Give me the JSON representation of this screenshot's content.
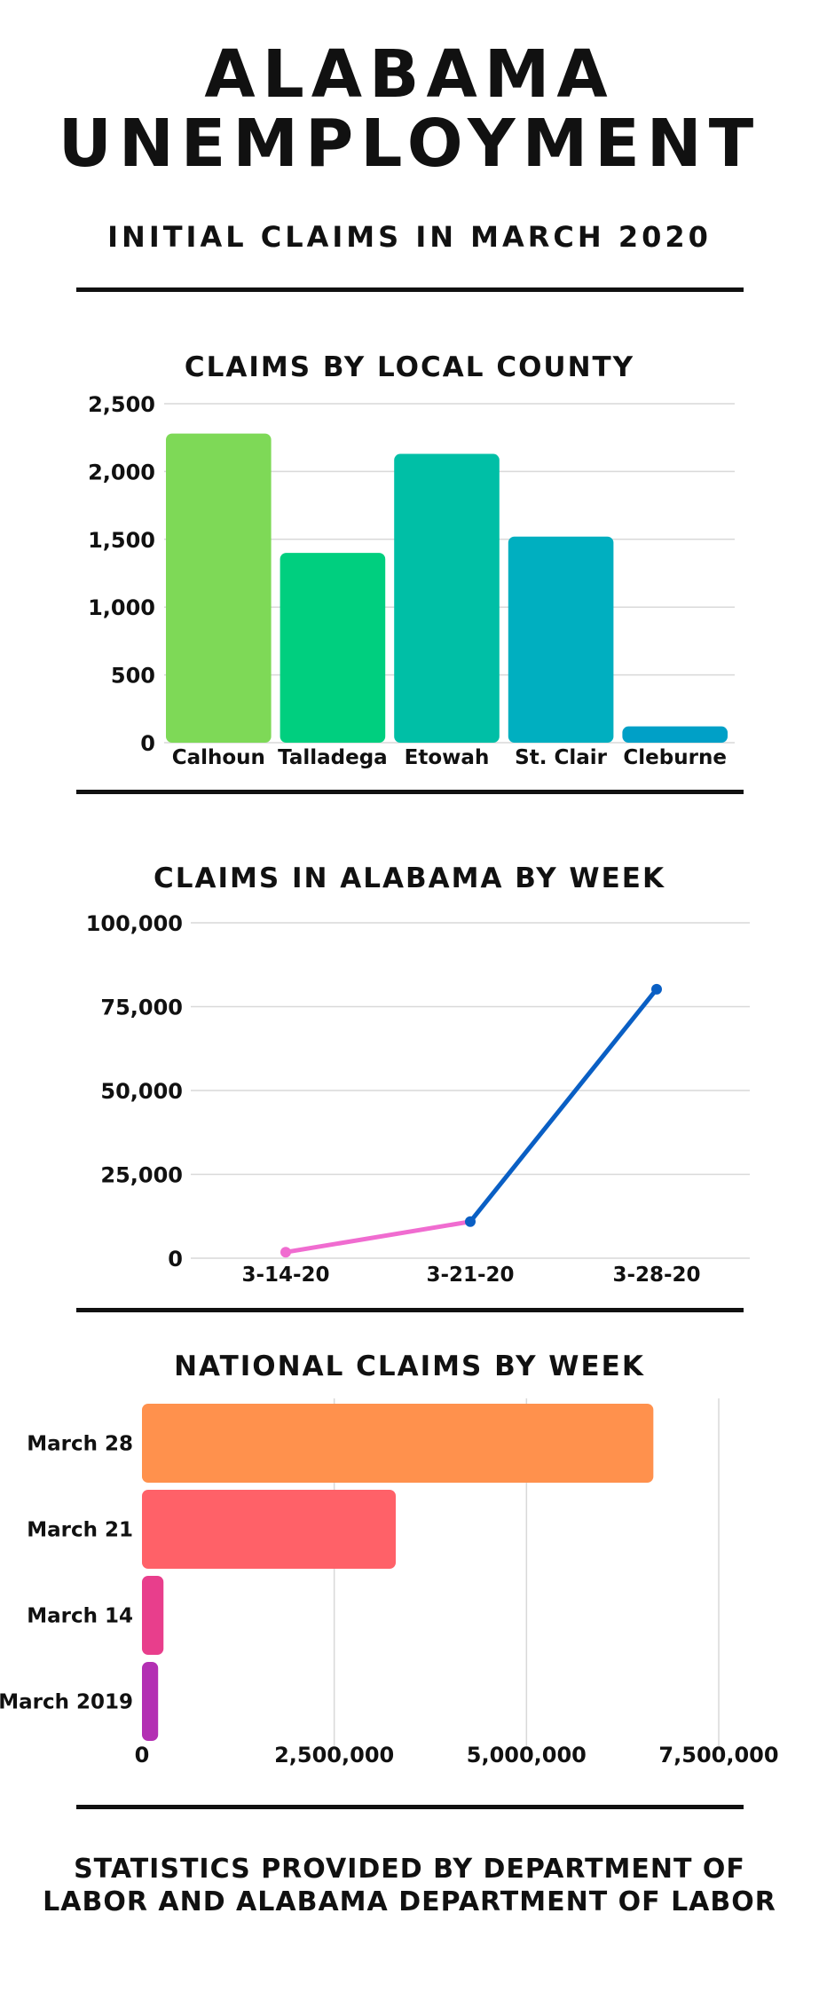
{
  "header": {
    "title_line1": "ALABAMA",
    "title_line2": "UNEMPLOYMENT",
    "subtitle": "INITIAL CLAIMS IN MARCH 2020"
  },
  "footer": {
    "line1": "STATISTICS PROVIDED BY DEPARTMENT OF",
    "line2": "LABOR AND ALABAMA DEPARTMENT OF LABOR"
  },
  "chart_data": [
    {
      "type": "bar",
      "title": "CLAIMS BY LOCAL COUNTY",
      "categories": [
        "Calhoun",
        "Talladega",
        "Etowah",
        "St. Clair",
        "Cleburne"
      ],
      "values": [
        2280,
        1400,
        2130,
        1520,
        120
      ],
      "colors": [
        "#7ed957",
        "#00cf7f",
        "#00bfa6",
        "#00afc0",
        "#00a0c7"
      ],
      "ylim": [
        0,
        2500
      ],
      "yticks": [
        0,
        500,
        1000,
        1500,
        2000,
        2500
      ],
      "ytick_labels": [
        "0",
        "500",
        "1,000",
        "1,500",
        "2,000",
        "2,500"
      ],
      "grid": true
    },
    {
      "type": "line",
      "title": "CLAIMS IN ALABAMA BY WEEK",
      "x": [
        "3-14-20",
        "3-21-20",
        "3-28-20"
      ],
      "values": [
        1800,
        10900,
        80200
      ],
      "segment_colors": [
        "#f06cd0",
        "#0a5fc4"
      ],
      "point_colors": [
        "#f06cd0",
        "#0a5fc4",
        "#0a5fc4"
      ],
      "ylim": [
        0,
        100000
      ],
      "yticks": [
        0,
        25000,
        50000,
        75000,
        100000
      ],
      "ytick_labels": [
        "0",
        "25,000",
        "50,000",
        "75,000",
        "100,000"
      ],
      "grid": true
    },
    {
      "type": "bar",
      "orientation": "horizontal",
      "title": "NATIONAL CLAIMS BY WEEK",
      "categories": [
        "March 28",
        "March 21",
        "March 14",
        "March 2019"
      ],
      "values": [
        6650000,
        3300000,
        280000,
        210000
      ],
      "colors": [
        "#ff914d",
        "#ff6168",
        "#e83e8c",
        "#b32fb3"
      ],
      "xlim": [
        0,
        7500000
      ],
      "xticks": [
        0,
        2500000,
        5000000,
        7500000
      ],
      "xtick_labels": [
        "0",
        "2,500,000",
        "5,000,000",
        "7,500,000"
      ],
      "grid": true
    }
  ]
}
